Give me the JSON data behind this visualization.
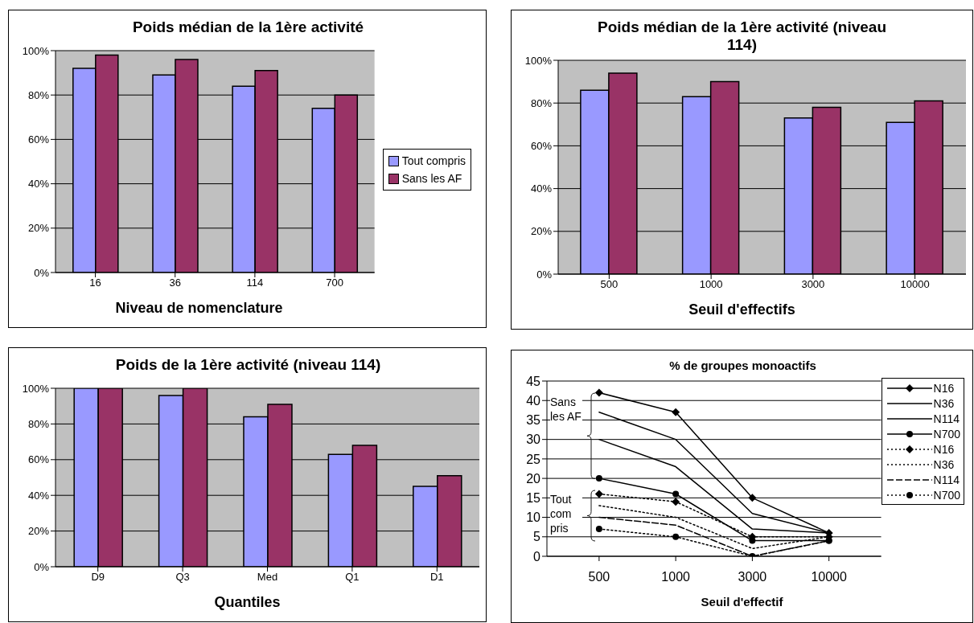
{
  "chart_data": [
    {
      "type": "bar",
      "title": "Poids médian de la 1ère activité",
      "xlabel": "Niveau de nomenclature",
      "categories": [
        "16",
        "36",
        "114",
        "700"
      ],
      "series": [
        {
          "name": "Tout compris",
          "color": "#9999ff",
          "values": [
            92,
            89,
            84,
            74
          ]
        },
        {
          "name": "Sans les AF",
          "color": "#993366",
          "values": [
            98,
            96,
            91,
            80
          ]
        }
      ],
      "ylim": [
        0,
        100
      ],
      "yticks": [
        {
          "value": 0,
          "label": "0%"
        },
        {
          "value": 20,
          "label": "20%"
        },
        {
          "value": 40,
          "label": "40%"
        },
        {
          "value": 60,
          "label": "60%"
        },
        {
          "value": 80,
          "label": "80%"
        },
        {
          "value": 100,
          "label": "100%"
        }
      ],
      "grid": "y",
      "legend": "right"
    },
    {
      "type": "bar",
      "title": "Poids médian de la 1ère activité (niveau 114)",
      "xlabel": "Seuil d'effectifs",
      "categories": [
        "500",
        "1000",
        "3000",
        "10000"
      ],
      "series": [
        {
          "color": "#9999ff",
          "values": [
            86,
            83,
            73,
            71
          ]
        },
        {
          "color": "#993366",
          "values": [
            94,
            90,
            78,
            81
          ]
        }
      ],
      "ylim": [
        0,
        100
      ],
      "yticks": [
        {
          "value": 0,
          "label": "0%"
        },
        {
          "value": 20,
          "label": "20%"
        },
        {
          "value": 40,
          "label": "40%"
        },
        {
          "value": 60,
          "label": "60%"
        },
        {
          "value": 80,
          "label": "80%"
        },
        {
          "value": 100,
          "label": "100%"
        }
      ],
      "grid": "y"
    },
    {
      "type": "bar",
      "title": "Poids de la 1ère activité (niveau 114)",
      "xlabel": "Quantiles",
      "categories": [
        "D9",
        "Q3",
        "Med",
        "Q1",
        "D1"
      ],
      "series": [
        {
          "color": "#9999ff",
          "values": [
            100,
            96,
            84,
            63,
            45
          ]
        },
        {
          "color": "#993366",
          "values": [
            100,
            100,
            91,
            68,
            51
          ]
        }
      ],
      "ylim": [
        0,
        100
      ],
      "yticks": [
        {
          "value": 0,
          "label": "0%"
        },
        {
          "value": 20,
          "label": "20%"
        },
        {
          "value": 40,
          "label": "40%"
        },
        {
          "value": 60,
          "label": "60%"
        },
        {
          "value": 80,
          "label": "80%"
        },
        {
          "value": 100,
          "label": "100%"
        }
      ],
      "grid": "y"
    },
    {
      "type": "line",
      "title": "% de groupes monoactifs",
      "xlabel": "Seuil d'effectif",
      "categories": [
        "500",
        "1000",
        "3000",
        "10000"
      ],
      "series": [
        {
          "name": "N16",
          "color": "#000000",
          "values": [
            42,
            37,
            15,
            6
          ],
          "marker": "diamond",
          "line_style": "solid"
        },
        {
          "name": "N36",
          "color": "#000000",
          "values": [
            37,
            30,
            11,
            6
          ],
          "marker": "none",
          "line_style": "solid"
        },
        {
          "name": "N114",
          "color": "#000000",
          "values": [
            30,
            23,
            7,
            6
          ],
          "marker": "none",
          "line_style": "solid"
        },
        {
          "name": "N700",
          "color": "#000000",
          "values": [
            20,
            16,
            4,
            4
          ],
          "marker": "circle",
          "line_style": "solid"
        },
        {
          "name": "N16",
          "color": "#000000",
          "values": [
            16,
            14,
            5,
            5
          ],
          "marker": "diamond",
          "line_style": "dotted"
        },
        {
          "name": "N36",
          "color": "#000000",
          "values": [
            13,
            10,
            2,
            5
          ],
          "marker": "none",
          "line_style": "dotted"
        },
        {
          "name": "N114",
          "color": "#000000",
          "values": [
            10,
            8,
            0,
            4
          ],
          "line_style": "dashed"
        },
        {
          "name": "N700",
          "color": "#000000",
          "values": [
            7,
            5,
            0,
            4
          ],
          "marker": "circle",
          "line_style": "dotted"
        }
      ],
      "ylim": [
        0,
        45
      ],
      "yticks": [
        0,
        5,
        10,
        15,
        20,
        25,
        30,
        35,
        40,
        45
      ],
      "grid": "y",
      "legend": "top right",
      "annotations": [
        "Sans les AF",
        "Tout com pris"
      ]
    }
  ]
}
